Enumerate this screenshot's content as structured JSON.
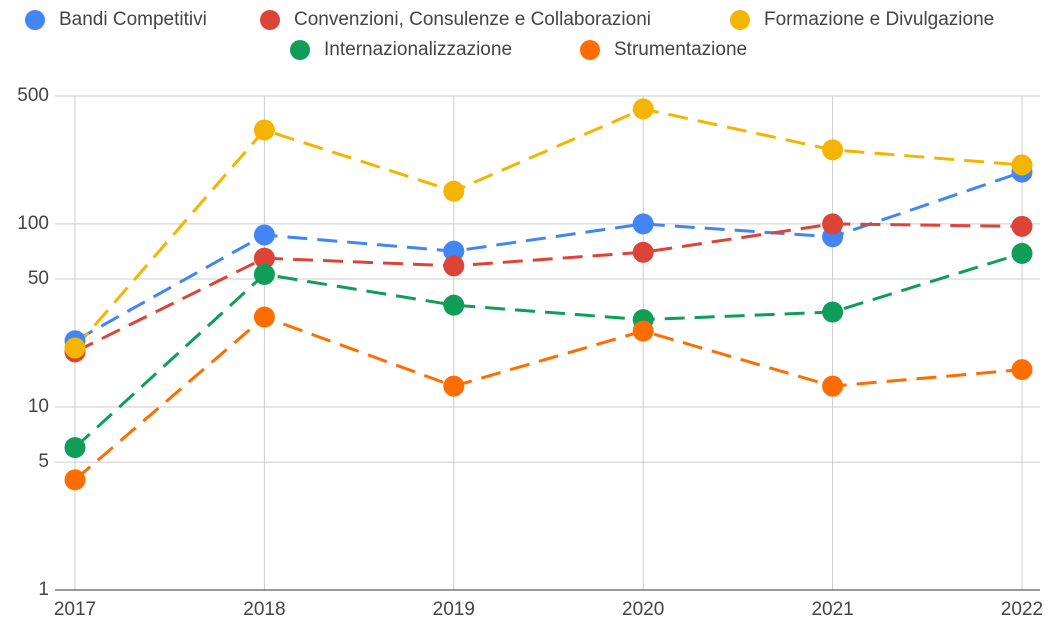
{
  "chart_data": {
    "type": "line",
    "log_scale": true,
    "grid": true,
    "legend": "top",
    "categories": [
      "2017",
      "2018",
      "2019",
      "2020",
      "2021",
      "2022"
    ],
    "series": [
      {
        "name": "Bandi Competitivi",
        "color": "#4285f4",
        "values": [
          23,
          87,
          71,
          100,
          85,
          192
        ]
      },
      {
        "name": "Convenzioni, Consulenze e Collaborazioni",
        "color": "#db4437",
        "values": [
          20,
          65,
          59,
          70,
          100,
          97
        ]
      },
      {
        "name": "Formazione e Divulgazione",
        "color": "#f4b400",
        "values": [
          21,
          326,
          151,
          425,
          254,
          210
        ]
      },
      {
        "name": "Internazionalizzazione",
        "color": "#0f9d58",
        "values": [
          6,
          53,
          36,
          30,
          33,
          69
        ]
      },
      {
        "name": "Strumentazione",
        "color": "#ff6d00",
        "values": [
          4,
          31,
          13,
          26,
          13,
          16
        ]
      }
    ],
    "ylim": [
      1,
      500
    ],
    "yticks": [
      1,
      5,
      10,
      50,
      100,
      500
    ]
  }
}
